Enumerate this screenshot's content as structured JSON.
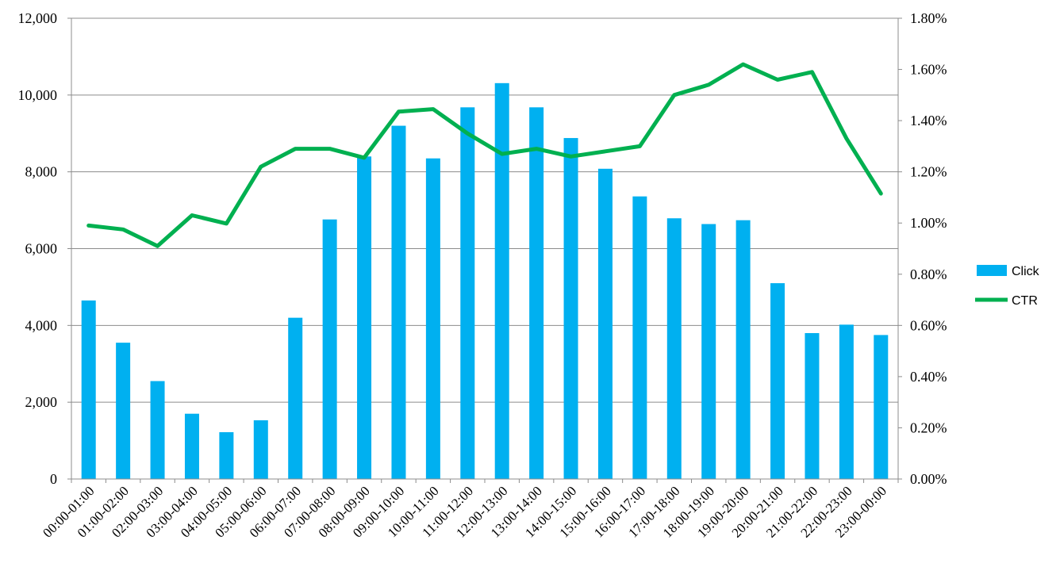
{
  "chart_data": {
    "type": "bar+line",
    "categories": [
      "00:00-01:00",
      "01:00-02:00",
      "02:00-03:00",
      "03:00-04:00",
      "04:00-05:00",
      "05:00-06:00",
      "06:00-07:00",
      "07:00-08:00",
      "08:00-09:00",
      "09:00-10:00",
      "10:00-11:00",
      "11:00-12:00",
      "12:00-13:00",
      "13:00-14:00",
      "14:00-15:00",
      "15:00-16:00",
      "16:00-17:00",
      "17:00-18:00",
      "18:00-19:00",
      "19:00-20:00",
      "20:00-21:00",
      "21:00-22:00",
      "22:00-23:00",
      "23:00-00:00"
    ],
    "series": [
      {
        "name": "Click",
        "type": "bar",
        "axis": "left",
        "color": "#00B0F0",
        "values": [
          4650,
          3550,
          2550,
          1700,
          1220,
          1530,
          4200,
          6760,
          8400,
          9200,
          8350,
          9680,
          10310,
          9680,
          8880,
          8080,
          7360,
          6790,
          6640,
          6740,
          5100,
          3800,
          4020,
          3750
        ]
      },
      {
        "name": "CTR",
        "type": "line",
        "axis": "right",
        "color": "#00B050",
        "values": [
          0.0099,
          0.00975,
          0.0091,
          0.0103,
          0.00998,
          0.0122,
          0.0129,
          0.0129,
          0.01255,
          0.01435,
          0.01445,
          0.0135,
          0.0127,
          0.0129,
          0.0126,
          0.0128,
          0.013,
          0.015,
          0.0154,
          0.0162,
          0.0156,
          0.0159,
          0.0133,
          0.01115
        ]
      }
    ],
    "y_left": {
      "ylim": [
        0,
        12000
      ],
      "ticks": [
        0,
        2000,
        4000,
        6000,
        8000,
        10000,
        12000
      ],
      "tick_labels": [
        "0",
        "2,000",
        "4,000",
        "6,000",
        "8,000",
        "10,000",
        "12,000"
      ]
    },
    "y_right": {
      "ylim": [
        0,
        0.018
      ],
      "ticks": [
        0,
        0.002,
        0.004,
        0.006,
        0.008,
        0.01,
        0.012,
        0.014,
        0.016,
        0.018
      ],
      "tick_labels": [
        "0.00%",
        "0.20%",
        "0.40%",
        "0.60%",
        "0.80%",
        "1.00%",
        "1.20%",
        "1.40%",
        "1.60%",
        "1.80%"
      ]
    },
    "grid": true,
    "legend_position": "right",
    "title": "",
    "xlabel": "",
    "ylabel": ""
  }
}
